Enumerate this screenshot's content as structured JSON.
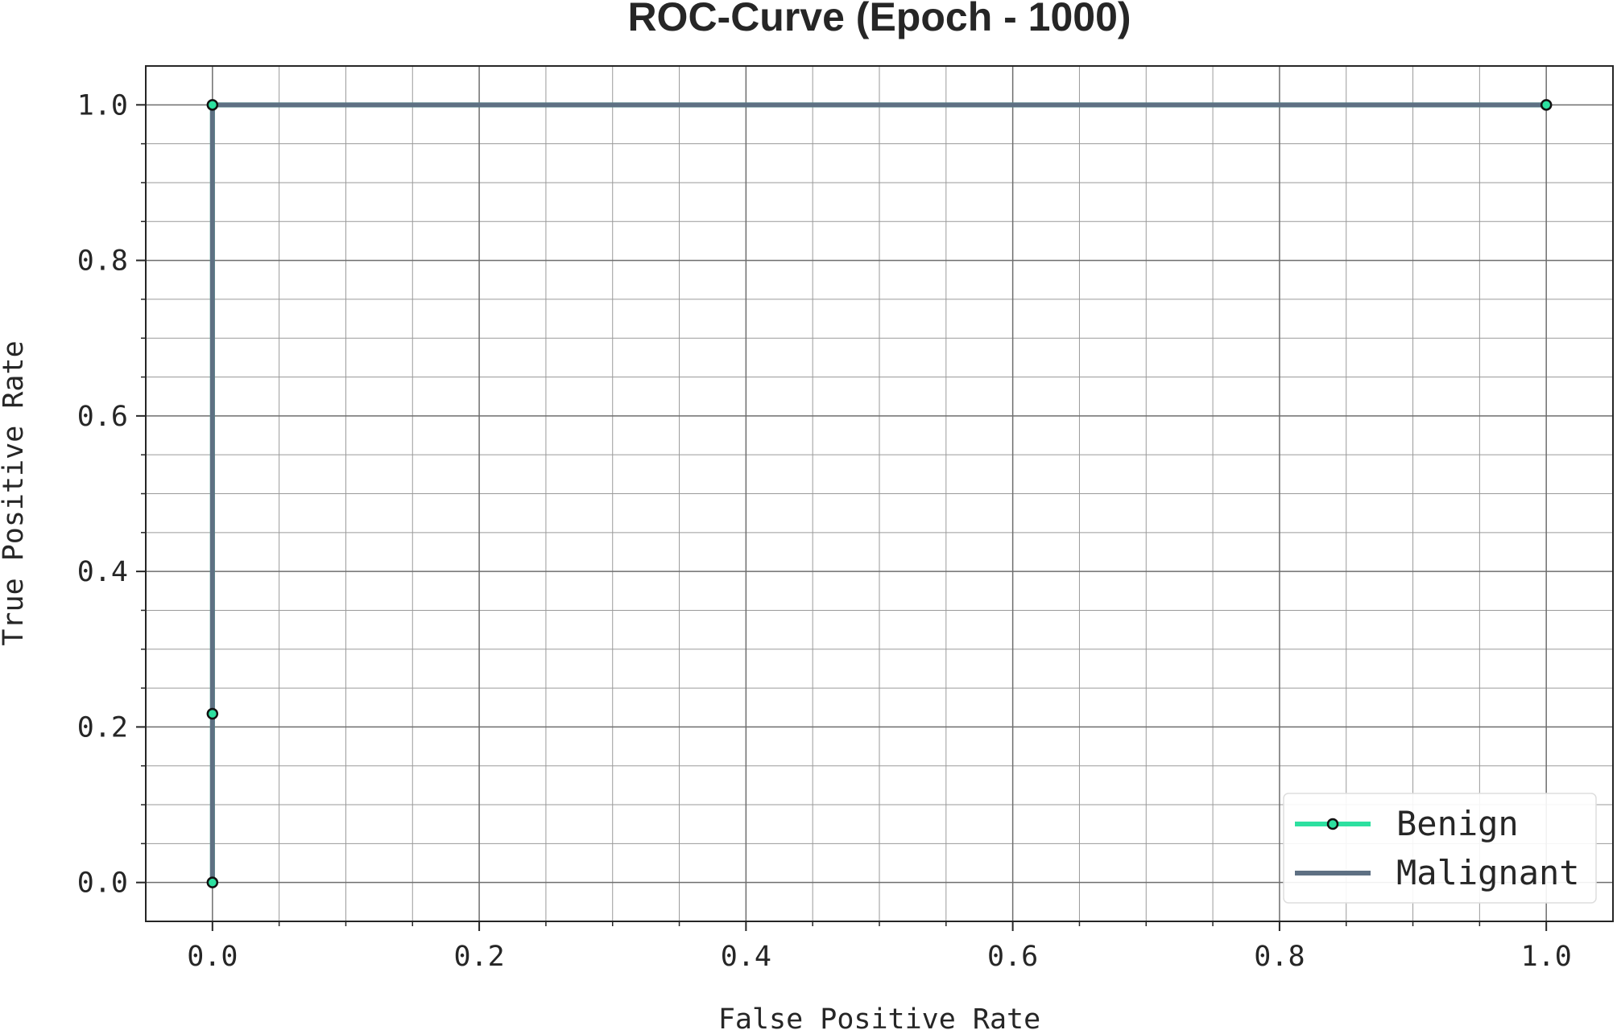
{
  "chart_data": {
    "type": "line",
    "title": "ROC-Curve (Epoch - 1000)",
    "xlabel": "False Positive Rate",
    "ylabel": "True Positive Rate",
    "xlim": [
      -0.05,
      1.05
    ],
    "ylim": [
      -0.05,
      1.05
    ],
    "xticks": [
      "0.0",
      "0.2",
      "0.4",
      "0.6",
      "0.8",
      "1.0"
    ],
    "yticks": [
      "0.0",
      "0.2",
      "0.4",
      "0.6",
      "0.8",
      "1.0"
    ],
    "grid": true,
    "legend_position": "bottom-right",
    "series": [
      {
        "name": "Benign",
        "color": "#2de0a0",
        "marker": "circle",
        "x": [
          0.0,
          0.0,
          0.0,
          1.0
        ],
        "y": [
          0.0,
          0.217,
          1.0,
          1.0
        ]
      },
      {
        "name": "Malignant",
        "color": "#5e7083",
        "marker": "none",
        "x": [
          0.0,
          0.0,
          0.0,
          1.0
        ],
        "y": [
          0.0,
          0.217,
          1.0,
          1.0
        ]
      }
    ]
  }
}
